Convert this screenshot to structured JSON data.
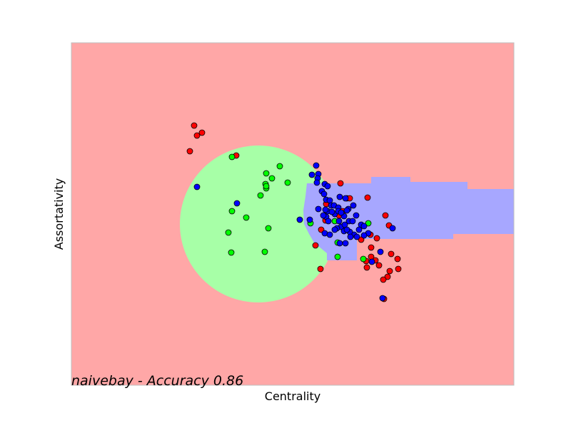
{
  "chart_data": {
    "type": "scatter",
    "title": "naivebay - Accuracy 0.86",
    "xlabel": "Centrality",
    "ylabel": "Assortativity",
    "xlim": [
      0,
      620
    ],
    "ylim": [
      0,
      480
    ],
    "grid": false,
    "legend": "none",
    "colors": {
      "background_region": "#ffa7a7",
      "green_region": "#a7ffa7",
      "blue_region": "#a7a7ff",
      "red_points": "#ff0000",
      "green_points": "#00ff00",
      "blue_points": "#0000ff",
      "point_edge": "#000000",
      "frame": "#bfbfbf"
    },
    "regions": {
      "green_circle": {
        "cx": 262,
        "cy": 226,
        "r": 110
      },
      "blue_polygon": [
        [
          358,
          185
        ],
        [
          358,
          175
        ],
        [
          400,
          175
        ],
        [
          400,
          205
        ],
        [
          535,
          205
        ],
        [
          535,
          212
        ],
        [
          620,
          212
        ],
        [
          620,
          275
        ],
        [
          555,
          275
        ],
        [
          555,
          285
        ],
        [
          475,
          285
        ],
        [
          475,
          292
        ],
        [
          420,
          292
        ],
        [
          420,
          283
        ],
        [
          330,
          283
        ],
        [
          328,
          265
        ],
        [
          325,
          245
        ],
        [
          326,
          226
        ],
        [
          333,
          212
        ],
        [
          340,
          200
        ]
      ]
    },
    "series": [
      {
        "color": "#ff0000",
        "points": [
          [
            172,
            364
          ],
          [
            176,
            350
          ],
          [
            183,
            354
          ],
          [
            166,
            328
          ],
          [
            231,
            322
          ],
          [
            377,
            283
          ],
          [
            386,
            262
          ],
          [
            390,
            262
          ],
          [
            415,
            263
          ],
          [
            356,
            231
          ],
          [
            375,
            238
          ],
          [
            380,
            244
          ],
          [
            357,
            254
          ],
          [
            440,
            238
          ],
          [
            445,
            224
          ],
          [
            350,
            218
          ],
          [
            419,
            211
          ],
          [
            428,
            206
          ],
          [
            406,
            204
          ],
          [
            420,
            193
          ],
          [
            448,
            184
          ],
          [
            420,
            180
          ],
          [
            413,
            174
          ],
          [
            426,
            175
          ],
          [
            414,
            165
          ],
          [
            457,
            177
          ],
          [
            446,
            160
          ],
          [
            458,
            163
          ],
          [
            443,
            152
          ],
          [
            431,
            168
          ],
          [
            349,
            163
          ],
          [
            437,
            148
          ],
          [
            438,
            121
          ],
          [
            342,
            196
          ]
        ]
      },
      {
        "color": "#00ff00",
        "points": [
          [
            225,
            320
          ],
          [
            292,
            307
          ],
          [
            273,
            297
          ],
          [
            281,
            290
          ],
          [
            303,
            284
          ],
          [
            272,
            282
          ],
          [
            265,
            266
          ],
          [
            273,
            276
          ],
          [
            225,
            244
          ],
          [
            245,
            235
          ],
          [
            276,
            220
          ],
          [
            220,
            214
          ],
          [
            224,
            186
          ],
          [
            271,
            187
          ],
          [
            369,
            230
          ],
          [
            335,
            227
          ],
          [
            373,
            200
          ],
          [
            373,
            180
          ],
          [
            416,
            227
          ],
          [
            409,
            177
          ],
          [
            273,
            279
          ]
        ]
      },
      {
        "color": "#0000ff",
        "points": [
          [
            176,
            278
          ],
          [
            232,
            255
          ],
          [
            343,
            308
          ],
          [
            346,
            296
          ],
          [
            337,
            295
          ],
          [
            345,
            290
          ],
          [
            344,
            284
          ],
          [
            355,
            282
          ],
          [
            351,
            272
          ],
          [
            359,
            279
          ],
          [
            357,
            260
          ],
          [
            362,
            259
          ],
          [
            354,
            268
          ],
          [
            376,
            264
          ],
          [
            364,
            252
          ],
          [
            359,
            244
          ],
          [
            368,
            252
          ],
          [
            384,
            262
          ],
          [
            374,
            249
          ],
          [
            369,
            240
          ],
          [
            374,
            244
          ],
          [
            395,
            252
          ],
          [
            388,
            247
          ],
          [
            382,
            237
          ],
          [
            378,
            222
          ],
          [
            389,
            230
          ],
          [
            399,
            238
          ],
          [
            406,
            225
          ],
          [
            356,
            246
          ],
          [
            357,
            236
          ],
          [
            394,
            230
          ],
          [
            410,
            223
          ],
          [
            416,
            213
          ],
          [
            410,
            210
          ],
          [
            396,
            211
          ],
          [
            384,
            199
          ],
          [
            376,
            199
          ],
          [
            400,
            208
          ],
          [
            390,
            215
          ],
          [
            355,
            213
          ],
          [
            362,
            211
          ],
          [
            450,
            220
          ],
          [
            320,
            232
          ],
          [
            334,
            232
          ],
          [
            346,
            247
          ],
          [
            365,
            243
          ],
          [
            386,
            245
          ],
          [
            378,
            242
          ],
          [
            403,
            218
          ],
          [
            372,
            220
          ],
          [
            382,
            216
          ],
          [
            433,
            187
          ],
          [
            421,
            173
          ],
          [
            436,
            122
          ],
          [
            369,
            218
          ],
          [
            386,
            218
          ],
          [
            391,
            208
          ],
          [
            375,
            230
          ],
          [
            353,
            238
          ],
          [
            360,
            230
          ],
          [
            383,
            225
          ]
        ]
      }
    ]
  }
}
